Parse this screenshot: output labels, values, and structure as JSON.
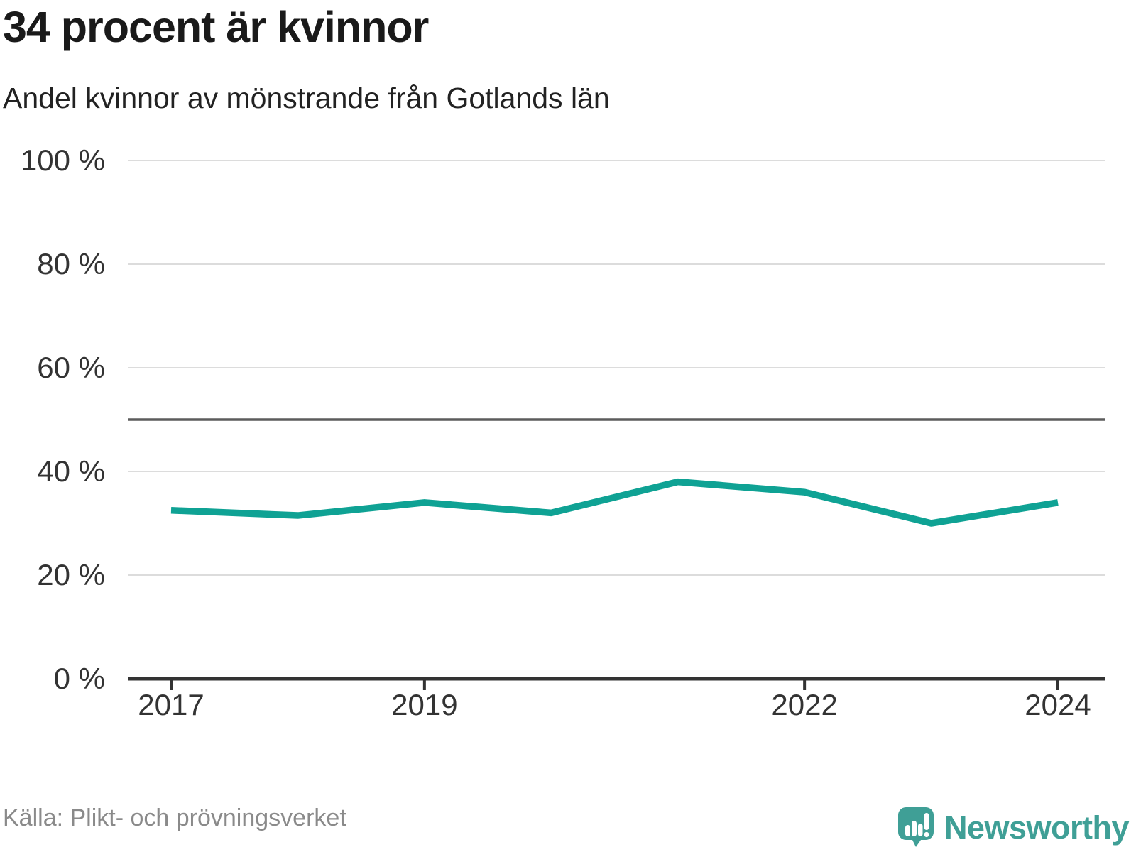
{
  "header": {
    "title": "34 procent är kvinnor",
    "subtitle": "Andel kvinnor av mönstrande från Gotlands län"
  },
  "footer": {
    "source": "Källa: Plikt- och prövningsverket",
    "brand_name": "Newsworthy"
  },
  "colors": {
    "line": "#0fa294",
    "grid": "#dcdcdc",
    "reference_line": "#5c5c5c",
    "axis": "#333333",
    "tick_text": "#333333",
    "brand": "#3f9f96",
    "muted_text": "#8a8a8a"
  },
  "chart_data": {
    "type": "line",
    "x": [
      2017,
      2018,
      2019,
      2020,
      2021,
      2022,
      2023,
      2024
    ],
    "series": [
      {
        "name": "Andel kvinnor av mönstrande, Gotlands län",
        "values": [
          32.5,
          31.5,
          34,
          32,
          38,
          36,
          30,
          34
        ]
      }
    ],
    "title": "34 procent är kvinnor",
    "xlabel": "",
    "ylabel": "",
    "ylim": [
      0,
      100
    ],
    "y_ticks": [
      0,
      20,
      40,
      60,
      80,
      100
    ],
    "y_tick_labels": [
      "0 %",
      "20 %",
      "40 %",
      "60 %",
      "80 %",
      "100 %"
    ],
    "x_ticks": [
      2017,
      2019,
      2022,
      2024
    ],
    "x_tick_labels": [
      "2017",
      "2019",
      "2022",
      "2024"
    ],
    "reference_line_y": 50,
    "grid": true,
    "legend_position": "none",
    "unit": "percent"
  }
}
